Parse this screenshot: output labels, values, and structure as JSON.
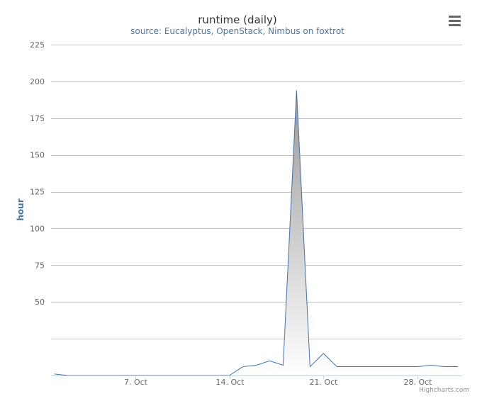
{
  "chart_data": {
    "type": "area",
    "title": "runtime (daily)",
    "subtitle": "source: Eucalyptus, OpenStack, Nimbus on foxtrot",
    "ylabel": "hour",
    "xlabel": "",
    "x_start": "Oct 1",
    "x_end": "Oct 31",
    "xticks": [
      {
        "day": 7,
        "label": "7. Oct"
      },
      {
        "day": 14,
        "label": "14. Oct"
      },
      {
        "day": 21,
        "label": "21. Oct"
      },
      {
        "day": 28,
        "label": "28. Oct"
      }
    ],
    "ylim": [
      0,
      225
    ],
    "yticks": [
      50,
      75,
      100,
      125,
      150,
      175,
      200,
      225
    ],
    "grid_values": [
      25,
      50,
      75,
      100,
      125,
      150,
      175,
      200,
      225
    ],
    "grid": true,
    "legend": false,
    "series": [
      {
        "days": [
          1,
          2,
          3,
          4,
          5,
          6,
          7,
          8,
          9,
          10,
          11,
          12,
          13,
          14,
          15,
          16,
          17,
          18,
          19,
          20,
          21,
          22,
          23,
          24,
          25,
          26,
          27,
          28,
          29,
          30,
          31
        ],
        "values": [
          1,
          0,
          0,
          0,
          0,
          0,
          0,
          0,
          0,
          0,
          0,
          0,
          0,
          0,
          6,
          7,
          10,
          7,
          194,
          6,
          15,
          6,
          6,
          6,
          6,
          6,
          6,
          6,
          7,
          6,
          6
        ]
      }
    ],
    "line_color": "#4572a7",
    "fill_top_color": "#999999",
    "fill_bottom_color": "#ffffff",
    "credit": "Highcharts.com",
    "menu_icon": "hamburger-menu-icon"
  }
}
